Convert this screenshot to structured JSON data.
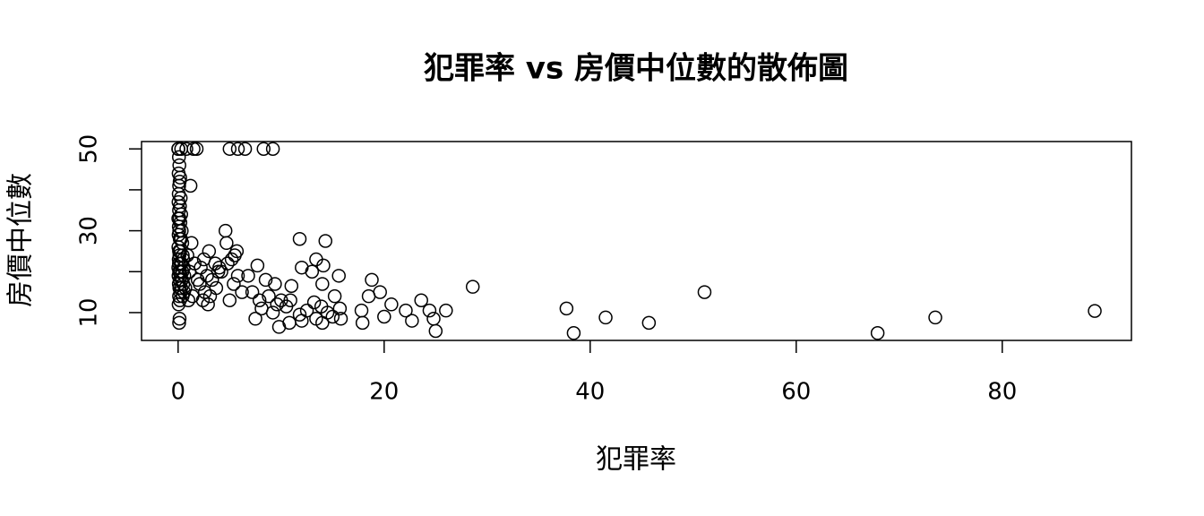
{
  "chart_data": {
    "type": "scatter",
    "title": "犯罪率 vs 房價中位數的散佈圖",
    "xlabel": "犯罪率",
    "ylabel": "房價中位數",
    "color": "#000000",
    "xlim": [
      -3.55,
      92.54
    ],
    "ylim": [
      3.2,
      51.8
    ],
    "xticks": [
      0,
      20,
      40,
      60,
      80
    ],
    "yticks": [
      10,
      20,
      30,
      40,
      50
    ],
    "x": [
      0.01,
      0.03,
      0.3,
      0.08,
      0.12,
      0.05,
      0.2,
      0.15,
      0.1,
      0.06,
      0.25,
      0.04,
      0.18,
      0.09,
      0.3,
      0.02,
      0.14,
      0.22,
      0.07,
      0.35,
      0.11,
      0.05,
      0.28,
      0.16,
      0.4,
      0.03,
      0.2,
      0.09,
      0.45,
      0.13,
      0.06,
      0.5,
      0.24,
      0.08,
      0.33,
      0.55,
      0.02,
      0.19,
      0.42,
      0.1,
      0.6,
      0.26,
      0.04,
      0.37,
      0.15,
      0.5,
      0.07,
      0.3,
      0.12,
      0.58,
      0.21,
      0.09,
      0.44,
      0.17,
      0.05,
      0.14,
      0.1,
      0.8,
      1.5,
      1.8,
      1.2,
      1.3,
      0.9,
      1.6,
      1.1,
      1.9,
      0.7,
      1.4,
      1.0,
      3.0,
      2.5,
      3.6,
      2.2,
      3.9,
      2.8,
      3.3,
      2.1,
      3.7,
      2.6,
      3.1,
      2.4,
      2.9,
      5.0,
      5.8,
      6.5,
      4.6,
      4.7,
      5.7,
      5.5,
      5.2,
      4.8,
      4.0,
      4.2,
      5.8,
      5.4,
      6.2,
      5.0,
      8.3,
      9.2,
      7.7,
      6.8,
      8.5,
      9.4,
      7.2,
      8.8,
      7.9,
      9.6,
      8.1,
      9.2,
      7.5,
      9.8,
      10.0,
      10.5,
      11.8,
      14.3,
      13.4,
      14.1,
      12.0,
      13.0,
      15.6,
      14.0,
      11.0,
      15.2,
      10.9,
      13.2,
      13.9,
      15.7,
      12.5,
      14.5,
      11.8,
      13.4,
      12.0,
      14.0,
      10.8,
      15.8,
      15.0,
      18.8,
      19.6,
      18.5,
      20.7,
      17.8,
      20.0,
      17.9,
      23.6,
      22.1,
      22.7,
      24.4,
      24.8,
      25.0,
      26.0,
      28.6,
      37.7,
      38.4,
      41.5,
      45.7,
      51.1,
      67.9,
      73.5,
      88.98
    ],
    "values": [
      50,
      50,
      50,
      48,
      46,
      44,
      43,
      42,
      41,
      39,
      38,
      37,
      36,
      35,
      34,
      33,
      33,
      32,
      31,
      30,
      30,
      29,
      28,
      28,
      27,
      26,
      25,
      25,
      24,
      24,
      23,
      23,
      22,
      22,
      22,
      21,
      21,
      20,
      20,
      20,
      19,
      19,
      19,
      18,
      18,
      17,
      17,
      16,
      16,
      15,
      15,
      14,
      14,
      13,
      12,
      8.5,
      7.5,
      50,
      50,
      50,
      41,
      27,
      24,
      22,
      20,
      18,
      16,
      14,
      13,
      25,
      23,
      22,
      21,
      20,
      19,
      18,
      17,
      16,
      15,
      14,
      13,
      12,
      50,
      50,
      50,
      30,
      27,
      25,
      24,
      23,
      22,
      21,
      20,
      19,
      17,
      15,
      13,
      50,
      50,
      21.5,
      19,
      18,
      17,
      15,
      14,
      13,
      12,
      11,
      10,
      8.5,
      6.5,
      13,
      11.5,
      28,
      27.5,
      23,
      21.5,
      21,
      20,
      19,
      17,
      16.5,
      14,
      13,
      12.5,
      11.5,
      11,
      10.5,
      10,
      9.5,
      8.5,
      8,
      7.5,
      7.5,
      8.5,
      9,
      18,
      15,
      14,
      12,
      10.5,
      9,
      7.5,
      13,
      10.5,
      8,
      10.5,
      8.5,
      5.5,
      10.5,
      16.3,
      11,
      5,
      8.8,
      7.5,
      15,
      5,
      8.8,
      10.4
    ]
  }
}
